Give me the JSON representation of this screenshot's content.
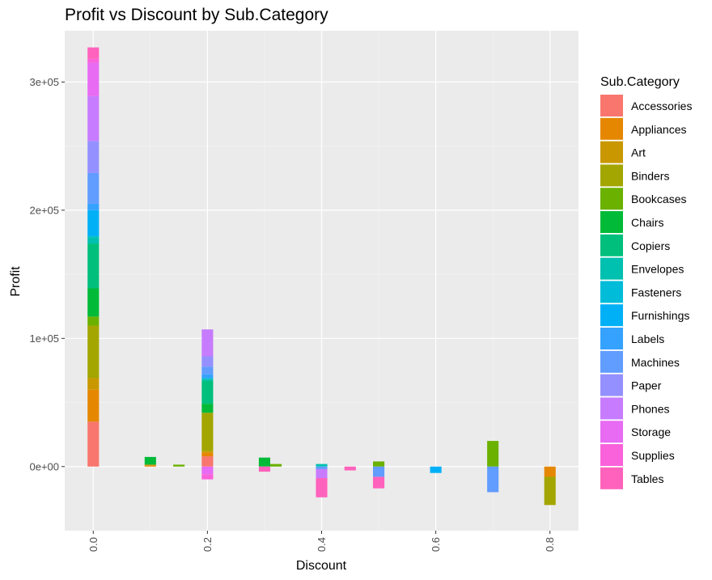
{
  "chart_data": {
    "type": "bar",
    "stacked": true,
    "title": "Profit vs Discount by Sub.Category",
    "xlabel": "Discount",
    "ylabel": "Profit",
    "xlim": [
      -0.05,
      0.85
    ],
    "ylim": [
      -50000,
      340000
    ],
    "x_ticks": [
      0.0,
      0.2,
      0.4,
      0.6,
      0.8
    ],
    "x_tick_labels": [
      "0.0",
      "0.2",
      "0.4",
      "0.6",
      "0.8"
    ],
    "y_ticks": [
      0,
      100000,
      200000,
      300000
    ],
    "y_tick_labels": [
      "0e+00",
      "1e+05",
      "2e+05",
      "3e+05"
    ],
    "grid": true,
    "legend_position": "right",
    "legend_title": "Sub.Category",
    "bar_width": 0.02,
    "series": [
      {
        "name": "Accessories",
        "color": "#F8766D",
        "values": [
          {
            "x": 0.0,
            "y": 35000
          },
          {
            "x": 0.2,
            "y": 8000
          }
        ]
      },
      {
        "name": "Appliances",
        "color": "#E58700",
        "values": [
          {
            "x": 0.0,
            "y": 25000
          },
          {
            "x": 0.1,
            "y": 1000
          },
          {
            "x": 0.2,
            "y": 3000
          },
          {
            "x": 0.8,
            "y": -8000
          }
        ]
      },
      {
        "name": "Art",
        "color": "#C99800",
        "values": [
          {
            "x": 0.0,
            "y": 9000
          },
          {
            "x": 0.1,
            "y": 500
          },
          {
            "x": 0.2,
            "y": 1000
          }
        ]
      },
      {
        "name": "Binders",
        "color": "#A3A500",
        "values": [
          {
            "x": 0.0,
            "y": 41000
          },
          {
            "x": 0.2,
            "y": 30000
          },
          {
            "x": 0.8,
            "y": -22000
          }
        ]
      },
      {
        "name": "Bookcases",
        "color": "#6BB100",
        "values": [
          {
            "x": 0.0,
            "y": 7000
          },
          {
            "x": 0.15,
            "y": 1500
          },
          {
            "x": 0.32,
            "y": 2000
          },
          {
            "x": 0.5,
            "y": 4000
          },
          {
            "x": 0.7,
            "y": 20000
          }
        ]
      },
      {
        "name": "Chairs",
        "color": "#00BA38",
        "values": [
          {
            "x": 0.0,
            "y": 22000
          },
          {
            "x": 0.1,
            "y": 6000
          },
          {
            "x": 0.2,
            "y": 7000
          },
          {
            "x": 0.3,
            "y": 7000
          }
        ]
      },
      {
        "name": "Copiers",
        "color": "#00BF7D",
        "values": [
          {
            "x": 0.0,
            "y": 35000
          },
          {
            "x": 0.2,
            "y": 18000
          }
        ]
      },
      {
        "name": "Envelopes",
        "color": "#00C0AF",
        "values": [
          {
            "x": 0.0,
            "y": 5000
          },
          {
            "x": 0.2,
            "y": 1500
          },
          {
            "x": 0.4,
            "y": 2000
          }
        ]
      },
      {
        "name": "Fasteners",
        "color": "#00BCD8",
        "values": [
          {
            "x": 0.0,
            "y": 1000
          },
          {
            "x": 0.2,
            "y": 500
          }
        ]
      },
      {
        "name": "Furnishings",
        "color": "#00B0F6",
        "values": [
          {
            "x": 0.0,
            "y": 20000
          },
          {
            "x": 0.6,
            "y": -5000
          }
        ]
      },
      {
        "name": "Labels",
        "color": "#35A2FF",
        "values": [
          {
            "x": 0.0,
            "y": 5000
          },
          {
            "x": 0.2,
            "y": 3000
          }
        ]
      },
      {
        "name": "Machines",
        "color": "#619CFF",
        "values": [
          {
            "x": 0.0,
            "y": 24000
          },
          {
            "x": 0.2,
            "y": 6000
          },
          {
            "x": 0.4,
            "y": -2000
          },
          {
            "x": 0.5,
            "y": -8000
          },
          {
            "x": 0.7,
            "y": -20000
          }
        ]
      },
      {
        "name": "Paper",
        "color": "#9590FF",
        "values": [
          {
            "x": 0.0,
            "y": 25000
          },
          {
            "x": 0.2,
            "y": 8000
          }
        ]
      },
      {
        "name": "Phones",
        "color": "#C77CFF",
        "values": [
          {
            "x": 0.0,
            "y": 35000
          },
          {
            "x": 0.2,
            "y": 21000
          },
          {
            "x": 0.4,
            "y": -7000
          }
        ]
      },
      {
        "name": "Storage",
        "color": "#E76BF3",
        "values": [
          {
            "x": 0.0,
            "y": 26000
          },
          {
            "x": 0.2,
            "y": -6000
          }
        ]
      },
      {
        "name": "Supplies",
        "color": "#FA62DB",
        "values": [
          {
            "x": 0.0,
            "y": 3000
          },
          {
            "x": 0.2,
            "y": -4000
          }
        ]
      },
      {
        "name": "Tables",
        "color": "#FF62BC",
        "values": [
          {
            "x": 0.0,
            "y": 9000
          },
          {
            "x": 0.3,
            "y": -4000
          },
          {
            "x": 0.4,
            "y": -15000
          },
          {
            "x": 0.45,
            "y": -3000
          },
          {
            "x": 0.5,
            "y": -9000
          }
        ]
      }
    ]
  }
}
